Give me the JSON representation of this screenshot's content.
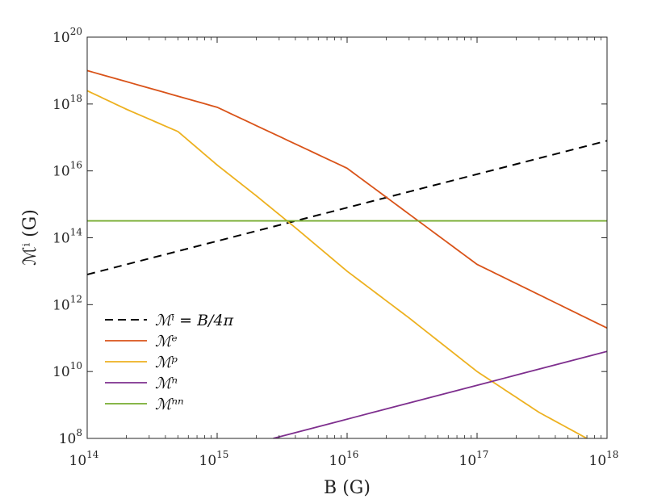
{
  "chart_data": {
    "type": "line",
    "title": "",
    "xlabel": "B (G)",
    "ylabel": "ℳⁱ (G)",
    "x_scale": "log",
    "y_scale": "log",
    "xlim": [
      100000000000000.0,
      1e+18
    ],
    "ylim": [
      100000000.0,
      1e+20
    ],
    "x_ticks": [
      {
        "base": "10",
        "exp": "14",
        "value": 100000000000000.0
      },
      {
        "base": "10",
        "exp": "15",
        "value": 1000000000000000.0
      },
      {
        "base": "10",
        "exp": "16",
        "value": 1e+16
      },
      {
        "base": "10",
        "exp": "17",
        "value": 1e+17
      },
      {
        "base": "10",
        "exp": "18",
        "value": 1e+18
      }
    ],
    "y_ticks": [
      {
        "base": "10",
        "exp": "8",
        "value": 100000000.0
      },
      {
        "base": "10",
        "exp": "10",
        "value": 10000000000.0
      },
      {
        "base": "10",
        "exp": "12",
        "value": 1000000000000.0
      },
      {
        "base": "10",
        "exp": "14",
        "value": 100000000000000.0
      },
      {
        "base": "10",
        "exp": "16",
        "value": 1e+16
      },
      {
        "base": "10",
        "exp": "18",
        "value": 1e+18
      },
      {
        "base": "10",
        "exp": "20",
        "value": 1e+20
      }
    ],
    "grid": false,
    "legend_position": "bottom-left",
    "series": [
      {
        "name": "ℳⁱ = B/4π",
        "color": "#000000",
        "dash": true,
        "x": [
          100000000000000.0,
          1e+18
        ],
        "y": [
          7960000000000.0,
          7.96e+16
        ]
      },
      {
        "name": "ℳᵉ",
        "color": "#D95319",
        "dash": false,
        "x": [
          100000000000000.0,
          1000000000000000.0,
          1e+16,
          1e+17,
          1e+18
        ],
        "y": [
          1e+19,
          8e+17,
          1.2e+16,
          16000000000000.0,
          200000000000.0
        ]
      },
      {
        "name": "ℳᵖ",
        "color": "#EDB120",
        "dash": false,
        "x": [
          100000000000000.0,
          200000000000000.0,
          500000000000000.0,
          1000000000000000.0,
          2000000000000000.0,
          4000000000000000.0,
          1e+16,
          3e+16,
          1e+17,
          3e+17,
          7e+17
        ],
        "y": [
          2.5e+18,
          7e+17,
          1.5e+17,
          1.5e+16,
          1800000000000000.0,
          200000000000000.0,
          10000000000000.0,
          400000000000.0,
          10000000000.0,
          600000000.0,
          100000000.0
        ]
      },
      {
        "name": "ℳⁿ",
        "color": "#7E2F8E",
        "dash": false,
        "x": [
          2700000000000000.0,
          1e+18
        ],
        "y": [
          100000000.0,
          40000000000.0
        ]
      },
      {
        "name": "ℳⁿⁿ",
        "color": "#77AC30",
        "dash": false,
        "x": [
          100000000000000.0,
          1e+18
        ],
        "y": [
          320000000000000.0,
          320000000000000.0
        ]
      }
    ]
  }
}
